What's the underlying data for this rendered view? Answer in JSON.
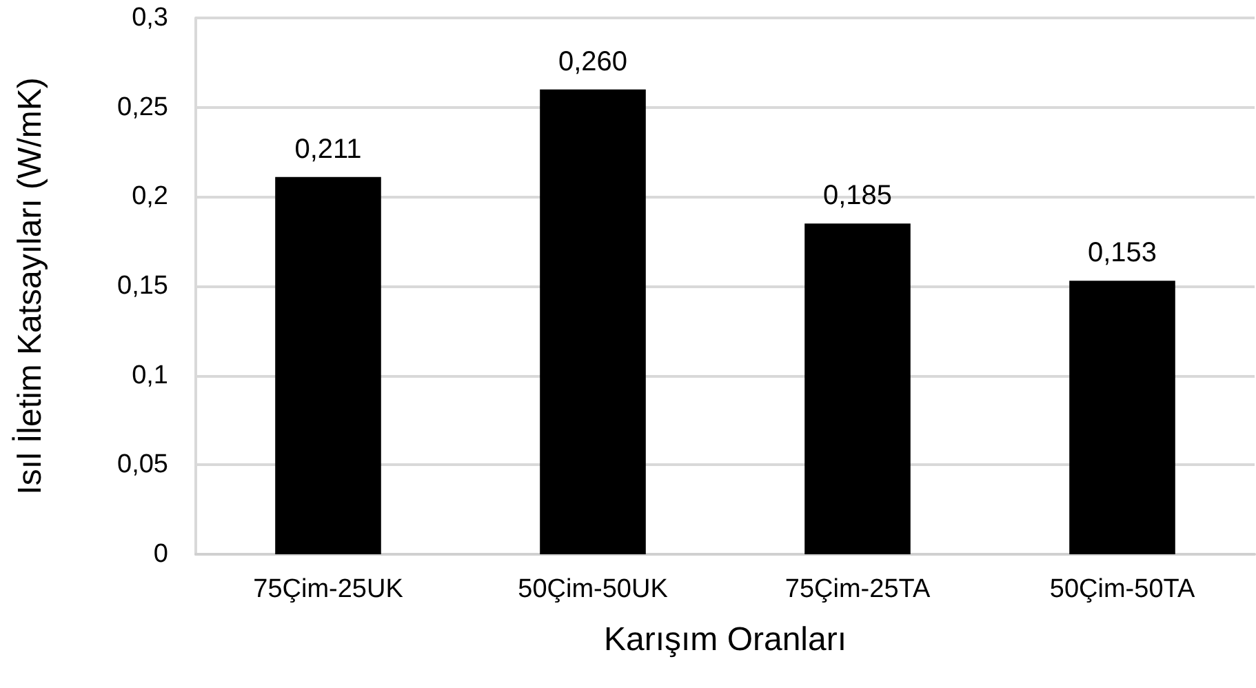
{
  "chart_data": {
    "type": "bar",
    "categories": [
      "75Çim-25UK",
      "50Çim-50UK",
      "75Çim-25TA",
      "50Çim-50TA"
    ],
    "values": [
      0.211,
      0.26,
      0.185,
      0.153
    ],
    "value_labels": [
      "0,211",
      "0,260",
      "0,185",
      "0,153"
    ],
    "color": "#000000",
    "xlabel": "Karışım Oranları",
    "ylabel": "Isıl İletim Katsayıları (W/mK)",
    "ylim": [
      0,
      0.3
    ],
    "yticks": [
      0,
      {
        "value": 0.05,
        "label": "0,05"
      },
      {
        "value": 0.1,
        "label": "0,1"
      },
      {
        "value": 0.15,
        "label": "0,15"
      },
      {
        "value": 0.2,
        "label": "0,2"
      },
      {
        "value": 0.25,
        "label": "0,25"
      },
      {
        "value": 0.3,
        "label": "0,3"
      }
    ],
    "grid": "y"
  }
}
